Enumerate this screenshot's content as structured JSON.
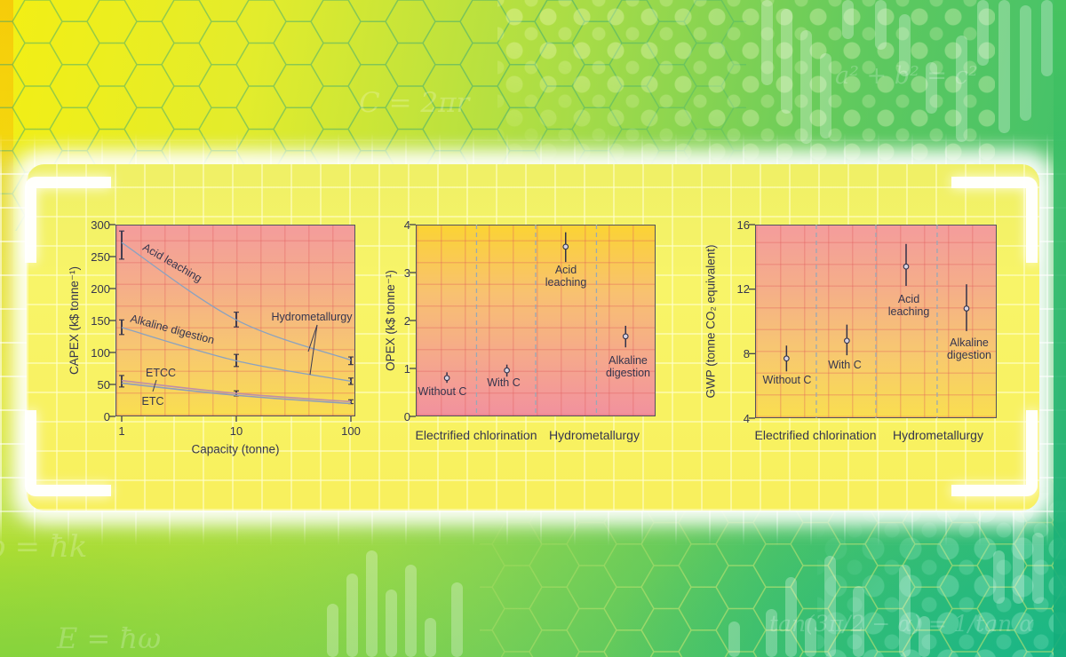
{
  "background": {
    "formulas": [
      {
        "id": "pythagoras",
        "text": "a² + b² = c²"
      },
      {
        "id": "circumference",
        "text": "C = 2πr"
      },
      {
        "id": "momentum",
        "text": "p = ħk"
      },
      {
        "id": "energy",
        "text": "E = ħω"
      },
      {
        "id": "tangent",
        "text": "tan(3π/2 − α) = 1/tan α"
      }
    ]
  },
  "chart_data": [
    {
      "type": "line",
      "xlabel": "Capacity (tonne)",
      "ylabel": "CAPEX (k$ tonne⁻¹)",
      "xscale": "log",
      "xlim": [
        1,
        100
      ],
      "ylim": [
        0,
        300
      ],
      "xticks": [
        1,
        10,
        100
      ],
      "yticks": [
        0,
        50,
        100,
        150,
        200,
        250,
        300
      ],
      "grid": "decorative square grid",
      "series": [
        {
          "name": "Acid leaching",
          "color": "#8aa2c0",
          "width": 1.3,
          "x": [
            1,
            10,
            100
          ],
          "y": [
            272,
            151,
            88
          ],
          "err_low": [
            246,
            140,
            81
          ],
          "err_high": [
            290,
            163,
            93
          ]
        },
        {
          "name": "Alkaline digestion",
          "color": "#8aa2c0",
          "width": 1.3,
          "x": [
            1,
            10,
            100
          ],
          "y": [
            139,
            87,
            55
          ],
          "err_low": [
            128,
            78,
            50
          ],
          "err_high": [
            151,
            97,
            60
          ]
        },
        {
          "name": "ETCC",
          "color": "#c08fa6",
          "width": 1.6,
          "x": [
            1,
            10,
            100
          ],
          "y": [
            56,
            36,
            23
          ],
          "err_low": [
            46,
            32,
            20
          ],
          "err_high": [
            64,
            40,
            26
          ]
        },
        {
          "name": "ETC",
          "color": "#8d9dbb",
          "width": 1.6,
          "x": [
            1,
            10,
            100
          ],
          "y": [
            52,
            33,
            20
          ],
          "err_low": null,
          "err_high": null
        }
      ],
      "annotations": {
        "acid_leaching": {
          "text": "Acid leaching"
        },
        "alkaline_digestion": {
          "text": "Alkaline digestion"
        },
        "hydrometallurgy": {
          "text": "Hydrometallurgy"
        },
        "etcc": {
          "text": "ETCC"
        },
        "etc": {
          "text": "ETC"
        }
      }
    },
    {
      "type": "scatter",
      "ylabel": "OPEX (k$ tonne⁻¹)",
      "ylim": [
        0,
        4
      ],
      "yticks": [
        0,
        1,
        2,
        3,
        4
      ],
      "group_labels": [
        "Electrified chlorination",
        "Hydrometallurgy"
      ],
      "points": [
        {
          "label": "Without C",
          "value": 0.8,
          "err_low": 0.7,
          "err_high": 0.92
        },
        {
          "label": "With C",
          "value": 0.96,
          "err_low": 0.83,
          "err_high": 1.08
        },
        {
          "label": "Acid leaching",
          "value": 3.54,
          "err_low": 3.22,
          "err_high": 3.84
        },
        {
          "label": "Alkaline digestion",
          "value": 1.67,
          "err_low": 1.44,
          "err_high": 1.89
        }
      ],
      "annotations": {
        "without_c": {
          "text": "Without C"
        },
        "with_c": {
          "text": "With C"
        },
        "acid_leaching": {
          "text": "Acid\nleaching"
        },
        "alkaline_digestion": {
          "text": "Alkaline\ndigestion"
        }
      }
    },
    {
      "type": "scatter",
      "ylabel": "GWP (tonne CO₂ equivalent)",
      "ylim": [
        4,
        16
      ],
      "yticks": [
        4,
        8,
        12,
        16
      ],
      "group_labels": [
        "Electrified chlorination",
        "Hydrometallurgy"
      ],
      "points": [
        {
          "label": "Without C",
          "value": 7.7,
          "err_low": 6.9,
          "err_high": 8.5
        },
        {
          "label": "With C",
          "value": 8.8,
          "err_low": 7.9,
          "err_high": 9.8
        },
        {
          "label": "Acid leaching",
          "value": 13.4,
          "err_low": 12.2,
          "err_high": 14.8
        },
        {
          "label": "Alkaline digestion",
          "value": 10.8,
          "err_low": 9.4,
          "err_high": 12.3
        }
      ],
      "annotations": {
        "without_c": {
          "text": "Without C"
        },
        "with_c": {
          "text": "With C"
        },
        "acid_leaching": {
          "text": "Acid\nleaching"
        },
        "alkaline_digestion": {
          "text": "Alkaline\ndigestion"
        }
      }
    }
  ]
}
